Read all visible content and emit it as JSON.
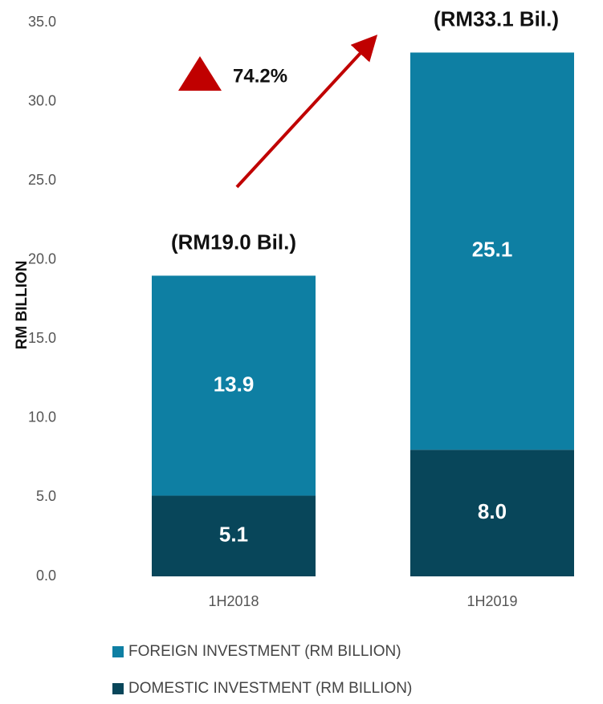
{
  "chart_data": {
    "type": "stacked_bar",
    "ylabel": "RM BILLION",
    "categories": [
      "1H2018",
      "1H2019"
    ],
    "series": [
      {
        "name": "DOMESTIC INVESTMENT (RM BILLION)",
        "color": "#08465a",
        "values": [
          5.1,
          8.0
        ],
        "value_labels": [
          "5.1",
          "8.0"
        ]
      },
      {
        "name": "FOREIGN INVESTMENT (RM BILLION)",
        "color": "#0e7fa3",
        "values": [
          13.9,
          25.1
        ]
      }
    ],
    "ylim": [
      0,
      35
    ],
    "yticks": [
      {
        "value": 0,
        "label": "0.0"
      },
      {
        "value": 5,
        "label": "5.0"
      },
      {
        "value": 10,
        "label": "10.0"
      },
      {
        "value": 15,
        "label": "15.0"
      },
      {
        "value": 20,
        "label": "20.0"
      },
      {
        "value": 25,
        "label": "25.0"
      },
      {
        "value": 30,
        "label": "30.0"
      },
      {
        "value": 35,
        "label": "35.0"
      }
    ],
    "grid": false,
    "annotations": [
      "(RM19.0 Bil.)",
      "(RM33.1 Bil.)",
      "74.2%"
    ]
  }
}
